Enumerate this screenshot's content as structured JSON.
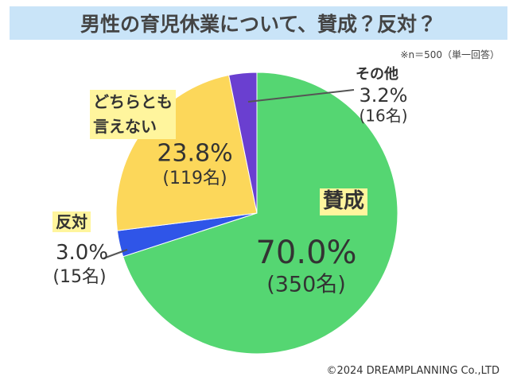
{
  "chart_data": {
    "type": "pie",
    "title": "男性の育児休業について、賛成？反対？",
    "note": "※n＝500（単一回答）",
    "credit": "©2024 DREAMPLANNING Co.,LTD",
    "categories": [
      "賛成",
      "反対",
      "どちらとも\n言えない",
      "その他"
    ],
    "values": [
      70.0,
      3.0,
      23.8,
      3.2
    ],
    "value_labels": [
      "70.0%",
      "3.0%",
      "23.8%",
      "3.2%"
    ],
    "count_labels": [
      "(350名)",
      "(15名)",
      "(119名)",
      "(16名)"
    ],
    "colors": [
      "#55d672",
      "#2f55e8",
      "#fcd75a",
      "#6a3fd0"
    ]
  }
}
